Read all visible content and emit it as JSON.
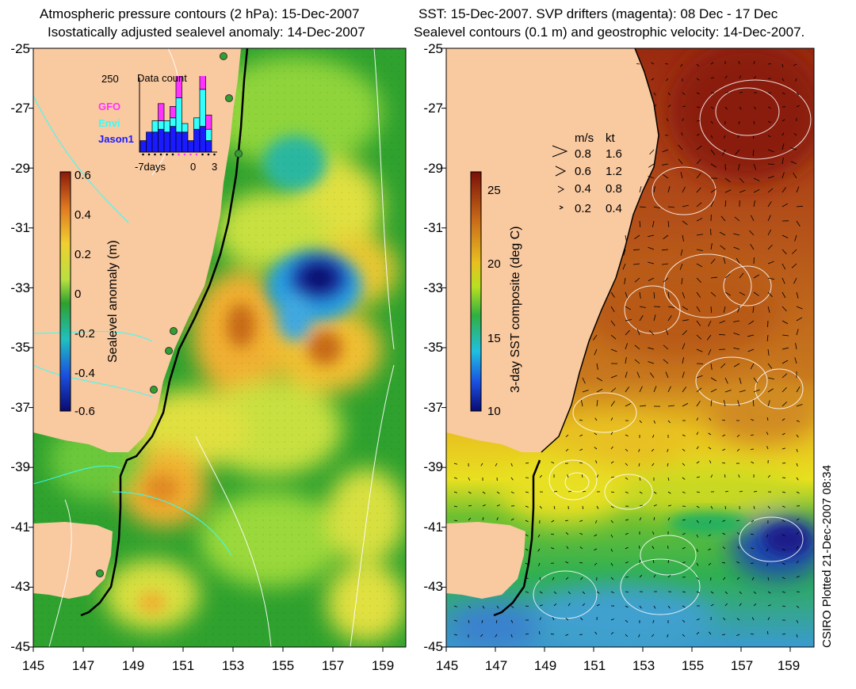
{
  "left_panel": {
    "title_line1": "Atmospheric pressure contours (2 hPa): 15-Dec-2007",
    "title_line2": "Isostatically adjusted sealevel anomaly: 14-Dec-2007",
    "colorbar": {
      "label": "Sealevel anomaly (m)",
      "ticks": [
        "0.6",
        "0.4",
        "0.2",
        "0",
        "-0.2",
        "-0.4",
        "-0.6"
      ]
    },
    "inset": {
      "title": "Data count",
      "ymax_label": "250",
      "legend": [
        {
          "label": "GFO",
          "color": "#ff33ff"
        },
        {
          "label": "Envi",
          "color": "#33ffff"
        },
        {
          "label": "Jason1",
          "color": "#1a1aff"
        }
      ],
      "x_labels": [
        "-7days",
        "0",
        "3"
      ],
      "bars": [
        {
          "gfo": 0,
          "envi": 0,
          "jason": 40
        },
        {
          "gfo": 0,
          "envi": 0,
          "jason": 70
        },
        {
          "gfo": 0,
          "envi": 40,
          "jason": 70
        },
        {
          "gfo": 60,
          "envi": 30,
          "jason": 80
        },
        {
          "gfo": 0,
          "envi": 40,
          "jason": 70
        },
        {
          "gfo": 40,
          "envi": 30,
          "jason": 90
        },
        {
          "gfo": 80,
          "envi": 120,
          "jason": 70
        },
        {
          "gfo": 0,
          "envi": 30,
          "jason": 70
        },
        {
          "gfo": 0,
          "envi": 0,
          "jason": 40
        },
        {
          "gfo": 0,
          "envi": 40,
          "jason": 80
        },
        {
          "gfo": 70,
          "envi": 130,
          "jason": 90
        },
        {
          "gfo": 50,
          "envi": 40,
          "jason": 40
        },
        {
          "gfo": 0,
          "envi": 0,
          "jason": 0
        }
      ]
    }
  },
  "right_panel": {
    "title_line1": "SST: 15-Dec-2007. SVP drifters (magenta): 08 Dec - 17 Dec",
    "title_line2": "Sealevel contours (0.1 m) and geostrophic velocity: 14-Dec-2007.",
    "colorbar": {
      "label": "3-day SST composite (deg C)",
      "ticks": [
        "25",
        "20",
        "15",
        "10"
      ]
    },
    "velocity_legend": {
      "header_ms": "m/s",
      "header_kt": "kt",
      "rows": [
        {
          "ms": "0.8",
          "kt": "1.6"
        },
        {
          "ms": "0.6",
          "kt": "1.2"
        },
        {
          "ms": "0.4",
          "kt": "0.8"
        },
        {
          "ms": "0.2",
          "kt": "0.4"
        }
      ]
    }
  },
  "axes": {
    "y_labels": [
      "-25",
      "-27",
      "-29",
      "-31",
      "-33",
      "-35",
      "-37",
      "-39",
      "-41",
      "-43",
      "-45"
    ],
    "x_labels": [
      "145",
      "147",
      "149",
      "151",
      "153",
      "155",
      "157",
      "159"
    ]
  },
  "credit": "CSIRO Plotted 21-Dec-2007 08:34",
  "colors": {
    "land": "#f9c9a0",
    "ocean_green": "#2ea12e",
    "sst_warm": "#b34a14"
  }
}
